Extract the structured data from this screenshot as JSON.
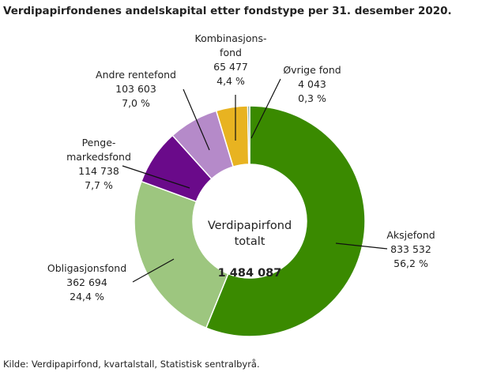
{
  "chart_data": {
    "type": "donut",
    "title": "Verdipapirfondenes andelskapital etter fondstype per 31. desember 2020.",
    "categories": [
      "Aksjefond",
      "Obligasjonsfond",
      "Penge-\nmarkedsfond",
      "Andre rentefond",
      "Kombinasjons-\nfond",
      "Øvrige fond"
    ],
    "values": [
      833532,
      362694,
      114738,
      103603,
      65477,
      4043
    ],
    "value_labels": [
      "833 532",
      "362 694",
      "114 738",
      "103 603",
      "65 477",
      "4 043"
    ],
    "percentages": [
      56.2,
      24.4,
      7.7,
      7.0,
      4.4,
      0.3
    ],
    "percentage_labels": [
      "56,2 %",
      "24,4 %",
      "7,7 %",
      "7,0 %",
      "4,4 %",
      "0,3 %"
    ],
    "colors": [
      "#3a8a00",
      "#9dc67f",
      "#6a0a8a",
      "#b58ac9",
      "#e8b321",
      "#5e8f84"
    ],
    "center_label": "Verdipapirfond\ntotalt",
    "total_label": "1 484 087",
    "source": "Kilde: Verdipapirfond, kvartalstall, Statistisk sentralbyrå."
  }
}
